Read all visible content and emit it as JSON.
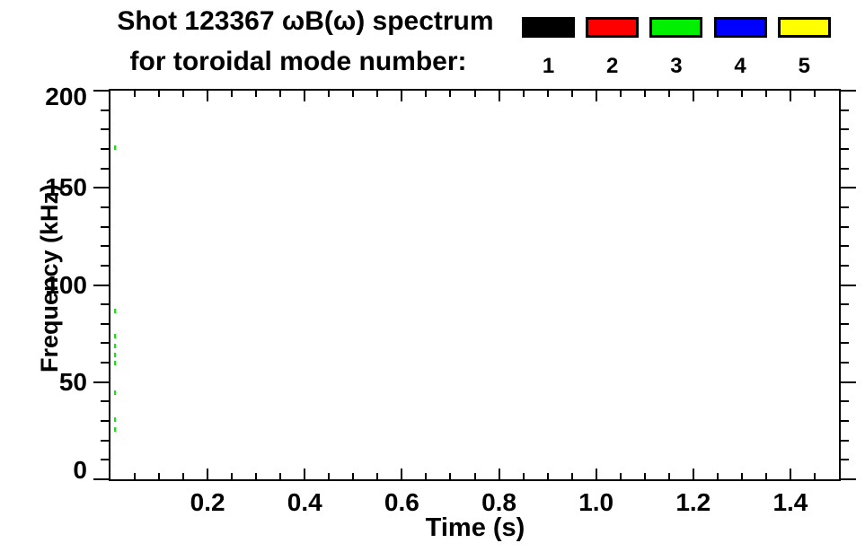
{
  "figure": {
    "title_line1": "Shot 123367 ωB(ω) spectrum",
    "title_line2": "for toroidal mode number:",
    "background_color": "#ffffff",
    "axis_color": "#000000"
  },
  "chart_data": {
    "type": "scatter",
    "title": "Shot 123367 ωB(ω) spectrum for toroidal mode number:",
    "xlabel": "Time (s)",
    "ylabel": "Frequency (kHz)",
    "xlim": [
      0,
      1.5
    ],
    "ylim": [
      0,
      200
    ],
    "grid": false,
    "x_major_ticks": [
      0.2,
      0.4,
      0.6,
      0.8,
      1.0,
      1.2,
      1.4
    ],
    "x_tick_labels": [
      "0.2",
      "0.4",
      "0.6",
      "0.8",
      "1.0",
      "1.2",
      "1.4"
    ],
    "x_minor_interval": 0.05,
    "y_major_ticks": [
      0,
      50,
      100,
      150,
      200
    ],
    "y_tick_labels": [
      "0",
      "50",
      "100",
      "150",
      "200"
    ],
    "y_minor_interval": 10,
    "legend": {
      "position": "top-right",
      "entries": [
        {
          "label": "1",
          "color": "#000000"
        },
        {
          "label": "2",
          "color": "#ff0000"
        },
        {
          "label": "3",
          "color": "#00f000"
        },
        {
          "label": "4",
          "color": "#0000ff"
        },
        {
          "label": "5",
          "color": "#ffff00"
        }
      ]
    },
    "series": [
      {
        "name": "toroidal mode n=3",
        "color": "#00f000",
        "marker": "small-dash",
        "points": [
          {
            "t": 0.01,
            "f": 171
          },
          {
            "t": 0.01,
            "f": 87
          },
          {
            "t": 0.01,
            "f": 74
          },
          {
            "t": 0.01,
            "f": 69
          },
          {
            "t": 0.01,
            "f": 64
          },
          {
            "t": 0.01,
            "f": 60
          },
          {
            "t": 0.01,
            "f": 45
          },
          {
            "t": 0.01,
            "f": 31
          },
          {
            "t": 0.01,
            "f": 26
          }
        ]
      }
    ]
  }
}
